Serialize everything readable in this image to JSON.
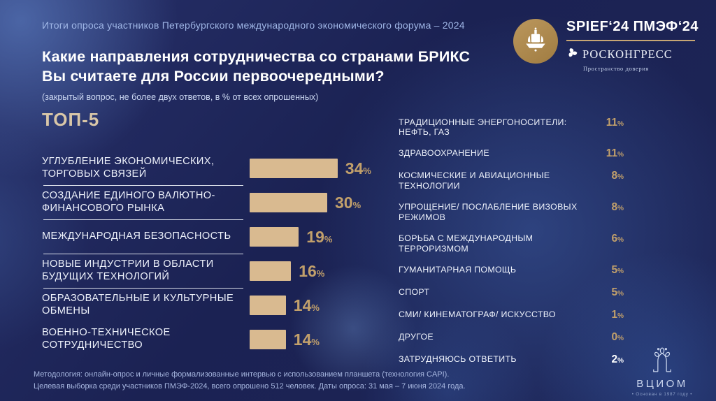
{
  "header": {
    "subtitle": "Итоги опроса участников Петербургского международного экономического форума – 2024",
    "title_line1": "Какие направления сотрудничества со странами БРИКС",
    "title_line2": "Вы считаете для России первоочередными?",
    "note": "(закрытый вопрос, не более двух ответов, в % от всех опрошенных)"
  },
  "branding": {
    "spief_wordmark": "SPIEF‘24 ПМЭФ‘24",
    "roscongress": "РОСКОНГРЕСС",
    "roscongress_tagline": "Пространство доверия"
  },
  "chart_data": [
    {
      "type": "bar",
      "title": "ТОП-5",
      "orientation": "horizontal",
      "categories": [
        "УГЛУБЛЕНИЕ ЭКОНОМИЧЕСКИХ, ТОРГОВЫХ СВЯЗЕЙ",
        "СОЗДАНИЕ ЕДИНОГО ВАЛЮТНО-ФИНАНСОВОГО РЫНКА",
        "МЕЖДУНАРОДНАЯ БЕЗОПАСНОСТЬ",
        "НОВЫЕ ИНДУСТРИИ В ОБЛАСТИ БУДУЩИХ ТЕХНОЛОГИЙ",
        "ОБРАЗОВАТЕЛЬНЫЕ И КУЛЬТУРНЫЕ ОБМЕНЫ",
        "ВОЕННО-ТЕХНИЧЕСКОЕ СОТРУДНИЧЕСТВО"
      ],
      "values": [
        34,
        30,
        19,
        16,
        14,
        14
      ],
      "unit": "%",
      "xlim": [
        0,
        40
      ],
      "bar_color": "#d9ba90",
      "value_color": "#c2a06b",
      "grid": false,
      "legend": false
    },
    {
      "type": "table",
      "title": "",
      "categories": [
        "ТРАДИЦИОННЫЕ ЭНЕРГОНОСИТЕЛИ: НЕФТЬ, ГАЗ",
        "ЗДРАВООХРАНЕНИЕ",
        "КОСМИЧЕСКИЕ И АВИАЦИОННЫЕ ТЕХНОЛОГИИ",
        "УПРОЩЕНИЕ/ ПОСЛАБЛЕНИЕ ВИЗОВЫХ РЕЖИМОВ",
        "БОРЬБА С МЕЖДУНАРОДНЫМ ТЕРРОРИЗМОМ",
        "ГУМАНИТАРНАЯ ПОМОЩЬ",
        "СПОРТ",
        "СМИ/ КИНЕМАТОГРАФ/ ИСКУССТВО",
        "ДРУГОЕ",
        "ЗАТРУДНЯЮСЬ ОТВЕТИТЬ"
      ],
      "values": [
        11,
        11,
        8,
        8,
        6,
        5,
        5,
        1,
        0,
        2
      ],
      "unit": "%",
      "value_color": "#c2a06b",
      "last_value_color": "#ffffff"
    }
  ],
  "footer": {
    "line1": "Методология: онлайн-опрос и личные формализованные интервью с использованием планшета (технология CAPI).",
    "line2": "Целевая выборка среди участников ПМЭФ-2024, всего опрошено 512 человек. Даты опроса: 31 мая – 7 июня 2024 года."
  },
  "vciom": {
    "wordmark": "ВЦИОМ",
    "founded": "•  Основан в 1987 году  •"
  }
}
